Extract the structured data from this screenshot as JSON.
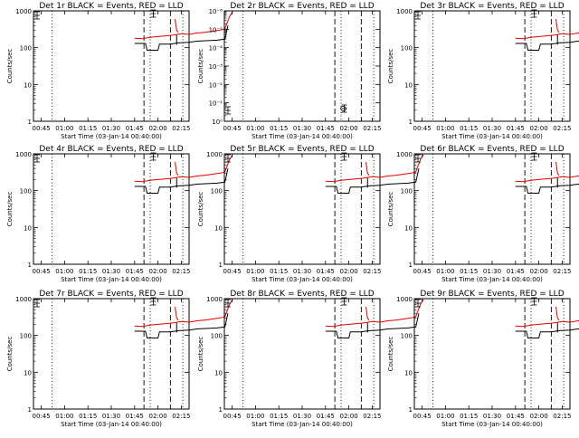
{
  "colors": {
    "events": "#000000",
    "lld": "#e00000",
    "axes": "#000000"
  },
  "x_label": "Start Time (03-Jan-14 00:40:00)",
  "y_label": "Counts/sec",
  "chart_data": [
    {
      "type": "line",
      "title": "Det 1r BLACK = Events, RED = LLD",
      "x_ticks": [
        "00:45",
        "01:00",
        "01:15",
        "01:30",
        "01:45",
        "02:00",
        "02:15"
      ],
      "y_ticks": [
        "1",
        "10",
        "100",
        "1000"
      ],
      "ylim": [
        1,
        1000
      ],
      "yscale": "log",
      "series": [
        {
          "name": "Events",
          "color": "#000000"
        },
        {
          "name": "LLD",
          "color": "#e00000"
        }
      ]
    },
    {
      "type": "line",
      "title": "Det 2r BLACK = Events, RED = LLD",
      "x_ticks": [
        "00:45",
        "01:00",
        "01:15",
        "01:30",
        "01:45",
        "02:00",
        "02:15"
      ],
      "y_ticks": [
        "10⁰",
        "10⁻¹",
        "10⁻²",
        "10⁻³",
        "10⁻⁴",
        "10⁻⁵",
        "10⁻⁶"
      ],
      "yscale": "log",
      "series": [
        {
          "name": "Events",
          "color": "#000000"
        },
        {
          "name": "LLD",
          "color": "#e00000"
        }
      ]
    },
    {
      "type": "line",
      "title": "Det 3r BLACK = Events, RED = LLD",
      "x_ticks": [
        "00:45",
        "01:00",
        "01:15",
        "01:30",
        "01:45",
        "02:00",
        "02:15"
      ],
      "y_ticks": [
        "1",
        "10",
        "100",
        "1000"
      ],
      "ylim": [
        1,
        1000
      ],
      "yscale": "log",
      "series": [
        {
          "name": "Events",
          "color": "#000000"
        },
        {
          "name": "LLD",
          "color": "#e00000"
        }
      ]
    },
    {
      "type": "line",
      "title": "Det 4r BLACK = Events, RED = LLD",
      "x_ticks": [
        "00:45",
        "01:00",
        "01:15",
        "01:30",
        "01:45",
        "02:00",
        "02:15"
      ],
      "y_ticks": [
        "1",
        "10",
        "100",
        "1000"
      ],
      "ylim": [
        1,
        1000
      ],
      "yscale": "log",
      "series": [
        {
          "name": "Events",
          "color": "#000000"
        },
        {
          "name": "LLD",
          "color": "#e00000"
        }
      ]
    },
    {
      "type": "line",
      "title": "Det 5r BLACK = Events, RED = LLD",
      "x_ticks": [
        "00:45",
        "01:00",
        "01:15",
        "01:30",
        "01:45",
        "02:00",
        "02:15"
      ],
      "y_ticks": [
        "1",
        "10",
        "100",
        "1000"
      ],
      "ylim": [
        1,
        1000
      ],
      "yscale": "log",
      "series": [
        {
          "name": "Events",
          "color": "#000000"
        },
        {
          "name": "LLD",
          "color": "#e00000"
        }
      ]
    },
    {
      "type": "line",
      "title": "Det 6r BLACK = Events, RED = LLD",
      "x_ticks": [
        "00:45",
        "01:00",
        "01:15",
        "01:30",
        "01:45",
        "02:00",
        "02:15"
      ],
      "y_ticks": [
        "1",
        "10",
        "100",
        "1000"
      ],
      "ylim": [
        1,
        1000
      ],
      "yscale": "log",
      "series": [
        {
          "name": "Events",
          "color": "#000000"
        },
        {
          "name": "LLD",
          "color": "#e00000"
        }
      ]
    },
    {
      "type": "line",
      "title": "Det 7r BLACK = Events, RED = LLD",
      "x_ticks": [
        "00:45",
        "01:00",
        "01:15",
        "01:30",
        "01:45",
        "02:00",
        "02:15"
      ],
      "y_ticks": [
        "1",
        "10",
        "100",
        "1000"
      ],
      "ylim": [
        1,
        1000
      ],
      "yscale": "log",
      "series": [
        {
          "name": "Events",
          "color": "#000000"
        },
        {
          "name": "LLD",
          "color": "#e00000"
        }
      ]
    },
    {
      "type": "line",
      "title": "Det 8r BLACK = Events, RED = LLD",
      "x_ticks": [
        "00:45",
        "01:00",
        "01:15",
        "01:30",
        "01:45",
        "02:00",
        "02:15"
      ],
      "y_ticks": [
        "1",
        "10",
        "100",
        "1000"
      ],
      "ylim": [
        1,
        1000
      ],
      "yscale": "log",
      "series": [
        {
          "name": "Events",
          "color": "#000000"
        },
        {
          "name": "LLD",
          "color": "#e00000"
        }
      ]
    },
    {
      "type": "line",
      "title": "Det 9r BLACK = Events, RED = LLD",
      "x_ticks": [
        "00:45",
        "01:00",
        "01:15",
        "01:30",
        "01:45",
        "02:00",
        "02:15"
      ],
      "y_ticks": [
        "1",
        "10",
        "100",
        "1000"
      ],
      "ylim": [
        1,
        1000
      ],
      "yscale": "log",
      "series": [
        {
          "name": "Events",
          "color": "#000000"
        },
        {
          "name": "LLD",
          "color": "#e00000"
        }
      ]
    }
  ]
}
